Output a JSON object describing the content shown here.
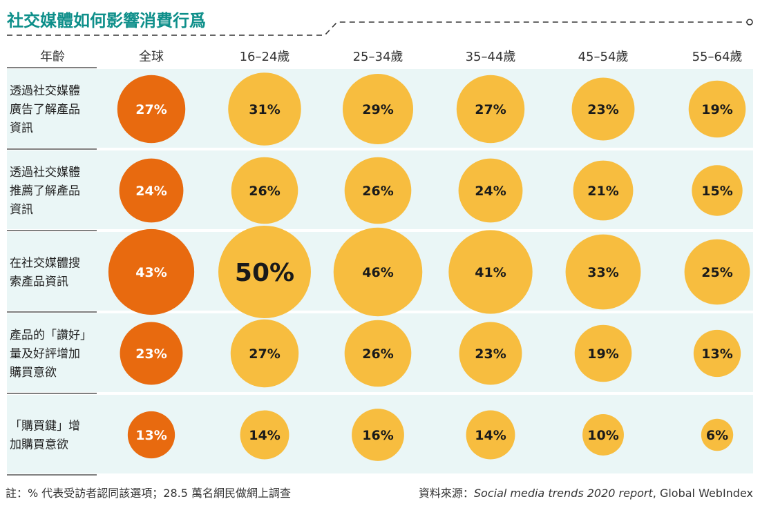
{
  "colors": {
    "title": "#0e8f8a",
    "row_band": "#eaf6f6",
    "global_bubble": "#e86a0f",
    "age_bubble": "#f7bd3f",
    "divider": "#333333"
  },
  "chart_data": {
    "type": "bubble-table",
    "title": "社交媒體如何影響消費行爲",
    "corner_label": "年齡",
    "columns": [
      "全球",
      "16–24歲",
      "25–34歲",
      "35–44歲",
      "45–54歲",
      "55–64歲"
    ],
    "rows": [
      {
        "label_lines": [
          "透過社交媒體",
          "廣告了解產品",
          "資訊"
        ],
        "values": [
          27,
          31,
          29,
          27,
          23,
          19
        ]
      },
      {
        "label_lines": [
          "透過社交媒體",
          "推薦了解產品",
          "資訊"
        ],
        "values": [
          24,
          26,
          26,
          24,
          21,
          15
        ]
      },
      {
        "label_lines": [
          "在社交媒體搜",
          "索產品資訊"
        ],
        "values": [
          43,
          50,
          46,
          41,
          33,
          25
        ]
      },
      {
        "label_lines": [
          "產品的「讚好」",
          "量及好評增加",
          "購買意欲"
        ],
        "values": [
          23,
          27,
          26,
          23,
          19,
          13
        ]
      },
      {
        "label_lines": [
          "「購買鍵」增",
          "加購買意欲"
        ],
        "values": [
          13,
          14,
          16,
          14,
          10,
          6
        ]
      }
    ],
    "value_suffix": "%",
    "highlight": {
      "row": 2,
      "col": 1
    }
  },
  "footer": {
    "note": "註：% 代表受訪者認同該選項；28.5 萬名網民做網上調查",
    "source_prefix": "資料來源：",
    "source_italic": "Social media trends 2020 report",
    "source_suffix": ", Global WebIndex"
  }
}
